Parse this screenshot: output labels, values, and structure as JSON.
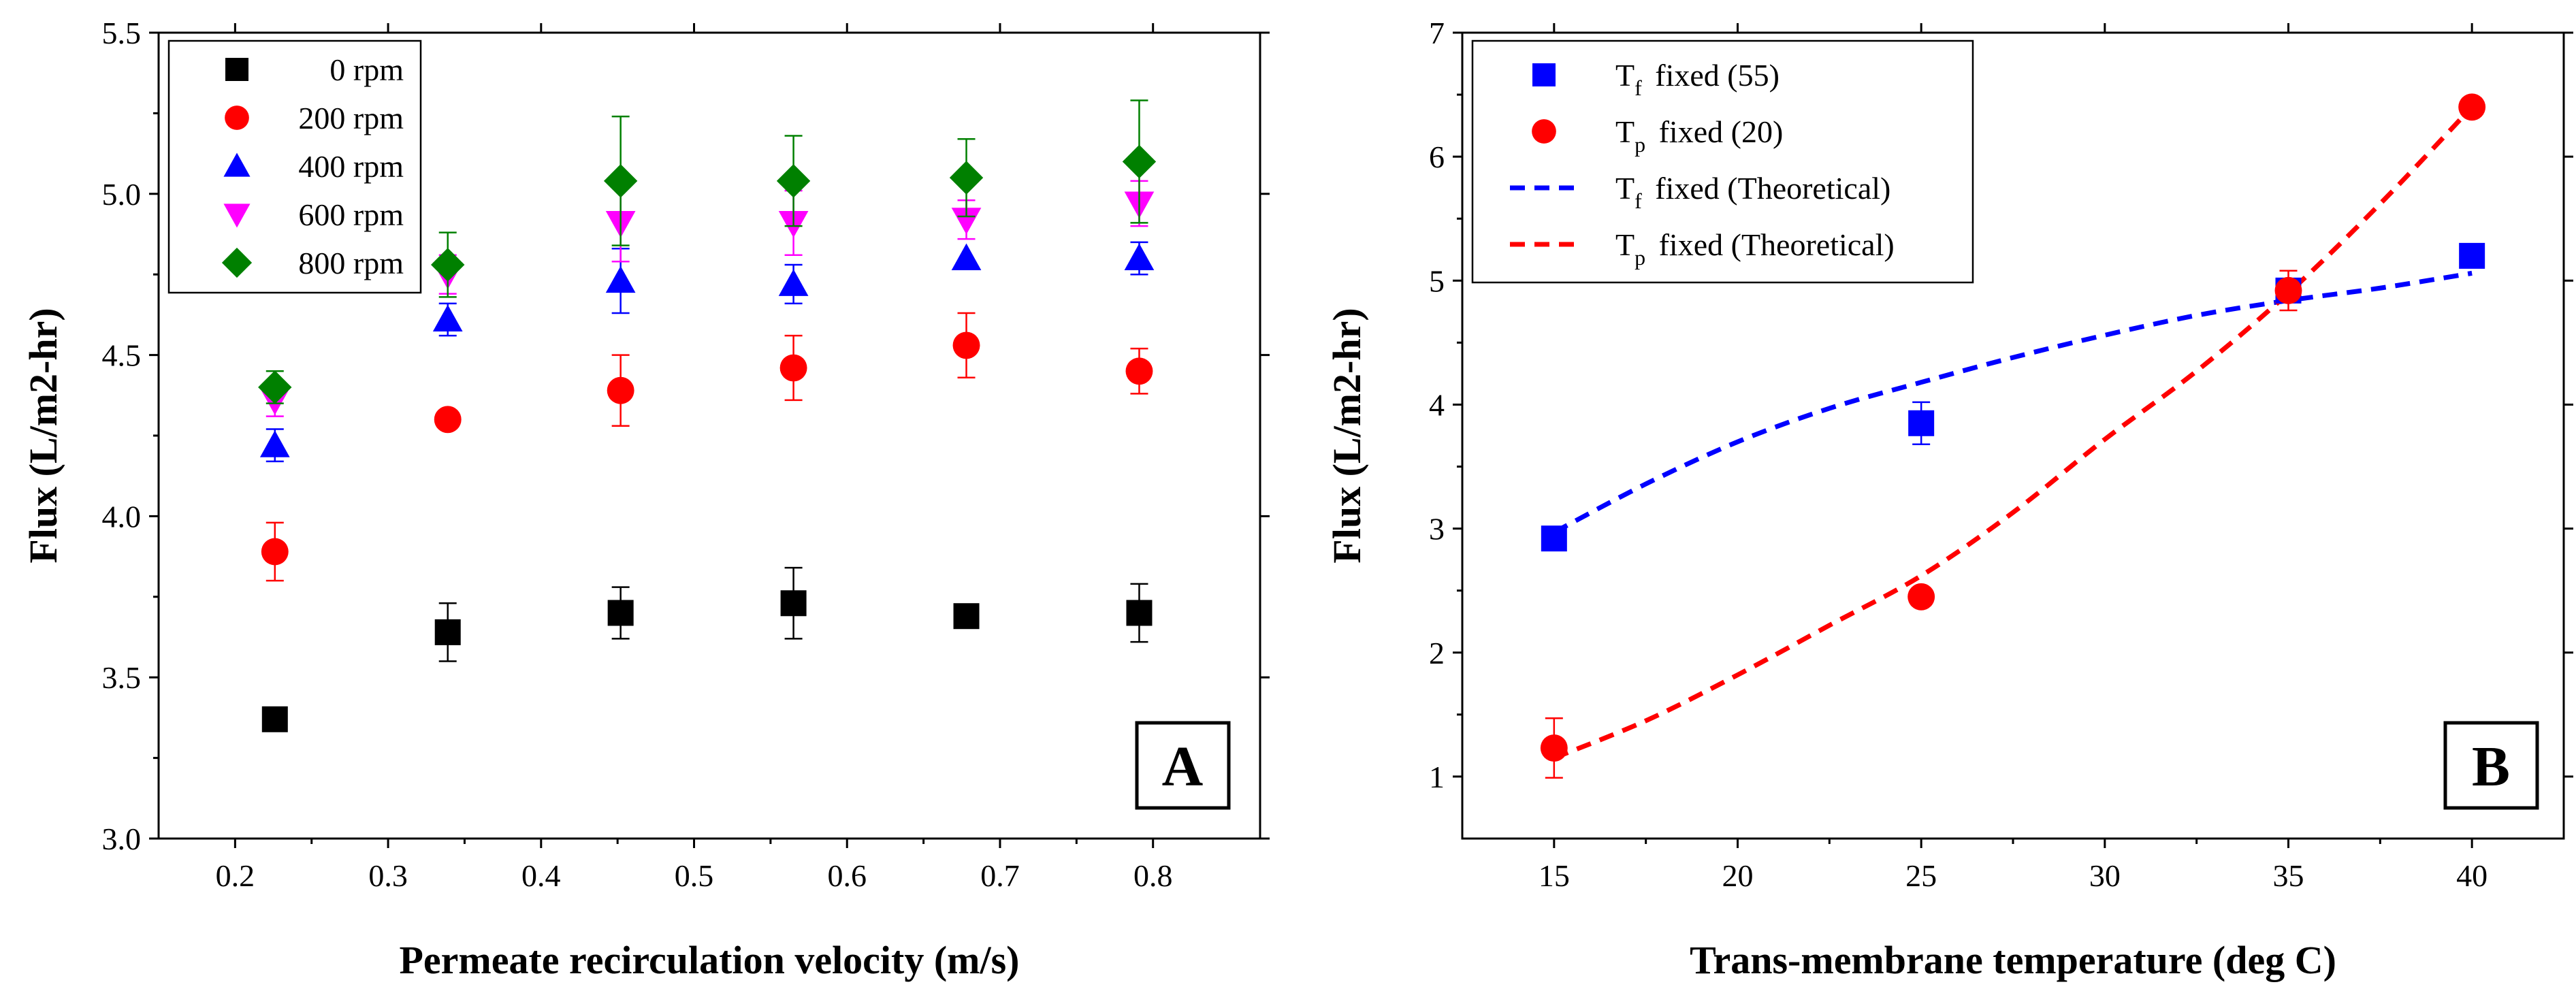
{
  "chart_data": [
    {
      "type": "scatter",
      "panel_label": "A",
      "xlabel": "Permeate recirculation velocity (m/s)",
      "ylabel": "Flux (L/m2-hr)",
      "xlim": [
        0.15,
        0.87
      ],
      "ylim": [
        3.0,
        5.5
      ],
      "xticks": [
        0.2,
        0.3,
        0.4,
        0.5,
        0.6,
        0.7,
        0.8
      ],
      "yticks": [
        3.0,
        3.5,
        4.0,
        4.5,
        5.0,
        5.5
      ],
      "xtick_labels": [
        "0.2",
        "0.3",
        "0.4",
        "0.5",
        "0.6",
        "0.7",
        "0.8"
      ],
      "ytick_labels": [
        "3.0",
        "3.5",
        "4.0",
        "4.5",
        "5.0",
        "5.5"
      ],
      "legend_position": "top-left",
      "x": [
        0.226,
        0.339,
        0.452,
        0.565,
        0.678,
        0.791
      ],
      "series": [
        {
          "name": "0 rpm",
          "marker": "square",
          "color": "#000000",
          "values": [
            3.37,
            3.64,
            3.7,
            3.73,
            3.69,
            3.7
          ],
          "errors": [
            0.0,
            0.09,
            0.08,
            0.11,
            0.0,
            0.09
          ]
        },
        {
          "name": "200 rpm",
          "marker": "circle",
          "color": "#ff0000",
          "values": [
            3.89,
            4.3,
            4.39,
            4.46,
            4.53,
            4.45
          ],
          "errors": [
            0.09,
            0.0,
            0.11,
            0.1,
            0.1,
            0.07
          ]
        },
        {
          "name": "400 rpm",
          "marker": "triangle-up",
          "color": "#0000ff",
          "values": [
            4.22,
            4.61,
            4.73,
            4.72,
            4.8,
            4.8
          ],
          "errors": [
            0.05,
            0.05,
            0.1,
            0.06,
            0.0,
            0.05
          ]
        },
        {
          "name": "600 rpm",
          "marker": "triangle-down",
          "color": "#ff00ff",
          "values": [
            4.36,
            4.75,
            4.91,
            4.91,
            4.92,
            4.97
          ],
          "errors": [
            0.05,
            0.06,
            0.12,
            0.1,
            0.06,
            0.07
          ]
        },
        {
          "name": "800 rpm",
          "marker": "diamond",
          "color": "#008000",
          "values": [
            4.4,
            4.78,
            5.04,
            5.04,
            5.05,
            5.1
          ],
          "errors": [
            0.05,
            0.1,
            0.2,
            0.14,
            0.12,
            0.19
          ]
        }
      ]
    },
    {
      "type": "scatter",
      "panel_label": "B",
      "xlabel": "Trans-membrane temperature (deg C)",
      "ylabel": "Flux (L/m2-hr)",
      "xlim": [
        12.5,
        42.5
      ],
      "ylim": [
        0.5,
        7.0
      ],
      "xticks": [
        15,
        20,
        25,
        30,
        35,
        40
      ],
      "yticks": [
        1,
        2,
        3,
        4,
        5,
        6,
        7
      ],
      "xtick_labels": [
        "15",
        "20",
        "25",
        "30",
        "35",
        "40"
      ],
      "ytick_labels": [
        "1",
        "2",
        "3",
        "4",
        "5",
        "6",
        "7"
      ],
      "legend_position": "top-left",
      "series": [
        {
          "name": "fixed (55)",
          "legend_prefix": "T",
          "legend_subscript": "f",
          "marker": "square",
          "color": "#0000ff",
          "x": [
            15,
            25,
            35,
            40
          ],
          "values": [
            2.92,
            3.85,
            4.92,
            5.2
          ],
          "errors": [
            0.0,
            0.17,
            0.09,
            0.0
          ]
        },
        {
          "name": "fixed (20)",
          "legend_prefix": "T",
          "legend_subscript": "p",
          "marker": "circle",
          "color": "#ff0000",
          "x": [
            15,
            25,
            35,
            40
          ],
          "values": [
            1.23,
            2.45,
            4.92,
            6.4
          ],
          "errors": [
            0.24,
            0.0,
            0.16,
            0.0
          ]
        }
      ],
      "lines": [
        {
          "name": "fixed (Theoretical)",
          "legend_prefix": "T",
          "legend_subscript": "f",
          "style": "dashed",
          "color": "#0000ff",
          "x": [
            15,
            17.5,
            20,
            22.5,
            25,
            27.5,
            30,
            32.5,
            35,
            37.5,
            40
          ],
          "values": [
            2.97,
            3.36,
            3.7,
            3.97,
            4.18,
            4.38,
            4.56,
            4.72,
            4.84,
            4.94,
            5.06
          ]
        },
        {
          "name": "fixed (Theoretical)",
          "legend_prefix": "T",
          "legend_subscript": "p",
          "style": "dashed",
          "color": "#ff0000",
          "x": [
            15,
            17.5,
            20,
            22.5,
            25,
            27.5,
            30,
            32.5,
            35,
            37.5,
            40
          ],
          "values": [
            1.15,
            1.45,
            1.82,
            2.22,
            2.62,
            3.13,
            3.72,
            4.27,
            4.9,
            5.62,
            6.4
          ]
        }
      ]
    }
  ]
}
